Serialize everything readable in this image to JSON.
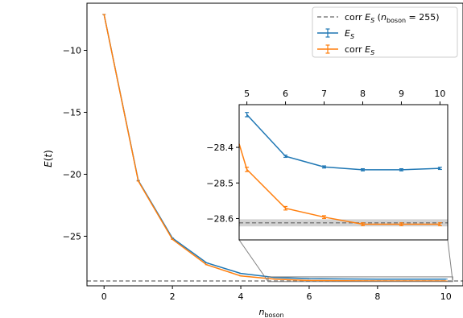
{
  "chart_data": [
    {
      "type": "line",
      "xlabel": "n_boson",
      "ylabel": "E(t)",
      "xlim": [
        -0.5,
        10.5
      ],
      "ylim": [
        -29.0,
        -6.2
      ],
      "x_ticks": [
        0,
        2,
        4,
        6,
        8,
        10
      ],
      "x_tick_labels": [
        "0",
        "2",
        "4",
        "6",
        "8",
        "10"
      ],
      "y_ticks": [
        -10,
        -15,
        -20,
        -25
      ],
      "y_tick_labels": [
        "−10",
        "−15",
        "−20",
        "−25"
      ],
      "grid": false,
      "legend_position": "top-right",
      "legend": [
        {
          "label_main": "corr E",
          "label_sub": "S",
          "label_extra": " (n",
          "label_extra_sub": "boson",
          "label_extra_end": " = 255)",
          "style": "dashed",
          "color": "#808080"
        },
        {
          "label_main": "E",
          "label_sub": "S",
          "style": "errorbar",
          "color": "#1f77b4"
        },
        {
          "label_main": "corr E",
          "label_sub": "S",
          "style": "errorbar",
          "color": "#ff7f0e"
        }
      ],
      "hline": {
        "y": -28.61,
        "color": "#808080"
      },
      "series": [
        {
          "id": "es",
          "color": "#1f77b4",
          "x": [
            0,
            1,
            2,
            3,
            4,
            5,
            6,
            7,
            8,
            9,
            10
          ],
          "y": [
            -7.1,
            -20.5,
            -25.15,
            -27.15,
            -28.0,
            -28.33,
            -28.42,
            -28.45,
            -28.46,
            -28.46,
            -28.46
          ]
        },
        {
          "id": "corr_es",
          "color": "#ff7f0e",
          "x": [
            0,
            1,
            2,
            3,
            4,
            5,
            6,
            7,
            8,
            9,
            10
          ],
          "y": [
            -7.1,
            -20.55,
            -25.25,
            -27.3,
            -28.2,
            -28.46,
            -28.57,
            -28.59,
            -28.61,
            -28.61,
            -28.61
          ]
        }
      ]
    },
    {
      "type": "line",
      "role": "inset",
      "xlim": [
        4.8,
        10.2
      ],
      "ylim": [
        -28.66,
        -28.28
      ],
      "x_ticks": [
        5,
        6,
        7,
        8,
        9,
        10
      ],
      "x_tick_labels": [
        "5",
        "6",
        "7",
        "8",
        "9",
        "10"
      ],
      "y_ticks": [
        -28.4,
        -28.5,
        -28.6
      ],
      "y_tick_labels": [
        "−28.4",
        "−28.5",
        "−28.6"
      ],
      "hline": {
        "y": -28.612,
        "band": [
          -28.622,
          -28.602
        ],
        "color": "#808080"
      },
      "series": [
        {
          "id": "es",
          "color": "#1f77b4",
          "x": [
            5,
            6,
            7,
            8,
            9,
            10
          ],
          "y": [
            -28.308,
            -28.425,
            -28.455,
            -28.463,
            -28.463,
            -28.459
          ],
          "err": [
            0.006,
            0.003,
            0.003,
            0.003,
            0.003,
            0.003
          ]
        },
        {
          "id": "corr_es",
          "color": "#ff7f0e",
          "x": [
            4.8,
            5,
            6,
            7,
            8,
            9,
            10
          ],
          "y": [
            -28.39,
            -28.462,
            -28.571,
            -28.596,
            -28.616,
            -28.616,
            -28.616
          ],
          "err": [
            0,
            0.006,
            0.005,
            0.004,
            0.004,
            0.004,
            0.004
          ]
        }
      ]
    }
  ]
}
